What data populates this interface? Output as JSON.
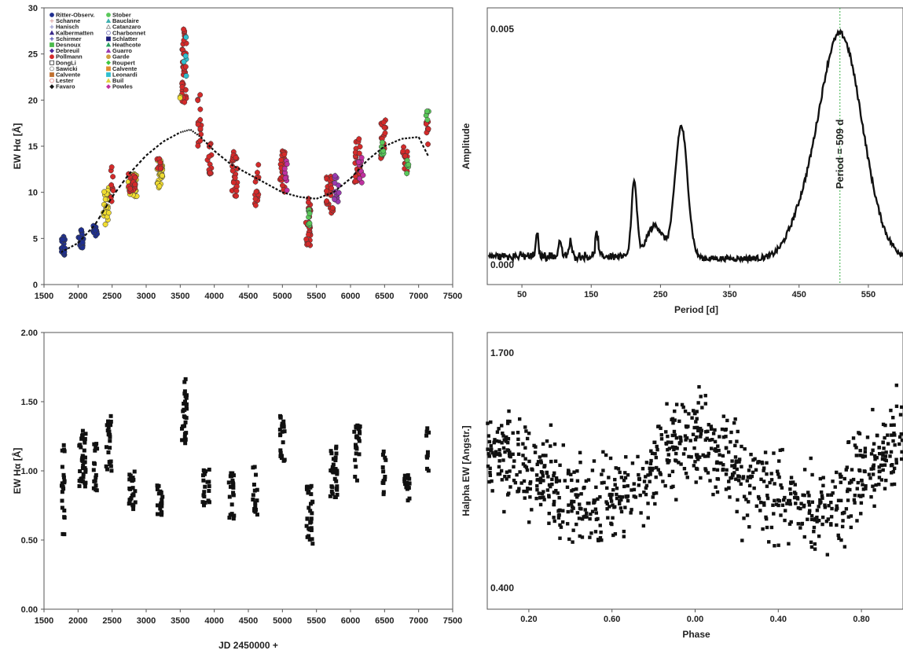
{
  "chart_data": [
    {
      "id": "ew-multi",
      "type": "scatter",
      "xlabel": "",
      "ylabel": "EW Hα [Å]",
      "xlim": [
        1500,
        7500
      ],
      "ylim": [
        0,
        30
      ],
      "xticks": [
        1500,
        2000,
        2500,
        3000,
        3500,
        4000,
        4500,
        5000,
        5500,
        6000,
        6500,
        7000,
        7500
      ],
      "yticks": [
        0,
        5,
        10,
        15,
        20,
        25,
        30
      ],
      "legend_placement": "top-left",
      "legend": [
        {
          "name": "Ritter-Observ.",
          "color": "#1f2f8f",
          "marker": "circle"
        },
        {
          "name": "Schanne",
          "color": "#d9a0a0",
          "marker": "plus"
        },
        {
          "name": "Hanisch",
          "color": "#8a8ac8",
          "marker": "plus"
        },
        {
          "name": "Kalbermatten",
          "color": "#3a2a8a",
          "marker": "triangle"
        },
        {
          "name": "Schirmer",
          "color": "#3a3aa8",
          "marker": "cross"
        },
        {
          "name": "Desnoux",
          "color": "#4cbb4c",
          "marker": "square"
        },
        {
          "name": "Debreuil",
          "color": "#4a2a9a",
          "marker": "diamond"
        },
        {
          "name": "Pollmann",
          "color": "#d42a2a",
          "marker": "circle"
        },
        {
          "name": "DongLi",
          "color": "#333333",
          "marker": "open-square"
        },
        {
          "name": "Sawicki",
          "color": "#888888",
          "marker": "open-circle"
        },
        {
          "name": "Calvente",
          "color": "#c07030",
          "marker": "square"
        },
        {
          "name": "Lester",
          "color": "#e08080",
          "marker": "open-circle"
        },
        {
          "name": "Favaro",
          "color": "#111111",
          "marker": "diamond"
        },
        {
          "name": "Stober",
          "color": "#5ac85a",
          "marker": "circle"
        },
        {
          "name": "Bauclaire",
          "color": "#40b0b0",
          "marker": "triangle"
        },
        {
          "name": "Catanzaro",
          "color": "#808080",
          "marker": "open-triangle"
        },
        {
          "name": "Charbonnet",
          "color": "#8080c0",
          "marker": "open-circle"
        },
        {
          "name": "Schlatter",
          "color": "#1a1a7a",
          "marker": "square"
        },
        {
          "name": "Heathcote",
          "color": "#2aa060",
          "marker": "triangle"
        },
        {
          "name": "Guarro",
          "color": "#9a3ab0",
          "marker": "triangle"
        },
        {
          "name": "Garde",
          "color": "#d0a040",
          "marker": "circle"
        },
        {
          "name": "Roupert",
          "color": "#40c840",
          "marker": "diamond"
        },
        {
          "name": "Calvente",
          "color": "#e08a30",
          "marker": "square"
        },
        {
          "name": "Leonardi",
          "color": "#30c0d0",
          "marker": "square"
        },
        {
          "name": "Buil",
          "color": "#e0d040",
          "marker": "triangle"
        },
        {
          "name": "Powles",
          "color": "#c030a0",
          "marker": "diamond"
        }
      ],
      "clusters": [
        {
          "c": 1780,
          "w": 60,
          "lo": 2.8,
          "hi": 5.2,
          "col": "#1f2f8f",
          "n": 22
        },
        {
          "c": 2050,
          "w": 90,
          "lo": 4.0,
          "hi": 6.0,
          "col": "#1f2f8f",
          "n": 20
        },
        {
          "c": 2250,
          "w": 60,
          "lo": 4.5,
          "hi": 6.5,
          "col": "#1f2f8f",
          "n": 10
        },
        {
          "c": 2420,
          "w": 100,
          "lo": 6.5,
          "hi": 10.5,
          "col": "#f0dc30",
          "n": 26
        },
        {
          "c": 2500,
          "w": 40,
          "lo": 9.0,
          "hi": 12.8,
          "col": "#d42a2a",
          "n": 10
        },
        {
          "c": 2800,
          "w": 130,
          "lo": 9.5,
          "hi": 12.0,
          "col": "#f0dc30",
          "n": 40
        },
        {
          "c": 2800,
          "w": 130,
          "lo": 10.0,
          "hi": 12.0,
          "col": "#d42a2a",
          "n": 20
        },
        {
          "c": 3200,
          "w": 80,
          "lo": 10.5,
          "hi": 13.5,
          "col": "#f0dc30",
          "n": 26
        },
        {
          "c": 3200,
          "w": 80,
          "lo": 12.5,
          "hi": 13.8,
          "col": "#d42a2a",
          "n": 8
        },
        {
          "c": 3560,
          "w": 70,
          "lo": 19.5,
          "hi": 28.0,
          "col": "#d42a2a",
          "n": 34
        },
        {
          "c": 3560,
          "w": 60,
          "lo": 22.0,
          "hi": 27.0,
          "col": "#30c0d0",
          "n": 5
        },
        {
          "c": 3500,
          "w": 10,
          "lo": 20.0,
          "hi": 20.5,
          "col": "#f0dc30",
          "n": 2
        },
        {
          "c": 3780,
          "w": 60,
          "lo": 15.0,
          "hi": 21.0,
          "col": "#d42a2a",
          "n": 14
        },
        {
          "c": 3930,
          "w": 60,
          "lo": 12.0,
          "hi": 16.0,
          "col": "#d42a2a",
          "n": 14
        },
        {
          "c": 4300,
          "w": 90,
          "lo": 9.5,
          "hi": 14.5,
          "col": "#d42a2a",
          "n": 26
        },
        {
          "c": 4620,
          "w": 70,
          "lo": 8.0,
          "hi": 13.0,
          "col": "#d42a2a",
          "n": 14
        },
        {
          "c": 5000,
          "w": 70,
          "lo": 10.0,
          "hi": 14.5,
          "col": "#d42a2a",
          "n": 26
        },
        {
          "c": 5050,
          "w": 40,
          "lo": 10.0,
          "hi": 14.0,
          "col": "#c030a0",
          "n": 10
        },
        {
          "c": 5380,
          "w": 70,
          "lo": 4.2,
          "hi": 9.5,
          "col": "#d42a2a",
          "n": 26
        },
        {
          "c": 5400,
          "w": 40,
          "lo": 6.0,
          "hi": 8.5,
          "col": "#5ac85a",
          "n": 8
        },
        {
          "c": 5700,
          "w": 110,
          "lo": 7.5,
          "hi": 12.0,
          "col": "#d42a2a",
          "n": 26
        },
        {
          "c": 5800,
          "w": 70,
          "lo": 9.0,
          "hi": 12.5,
          "col": "#9a3ab0",
          "n": 14
        },
        {
          "c": 6100,
          "w": 90,
          "lo": 11.0,
          "hi": 16.0,
          "col": "#d42a2a",
          "n": 24
        },
        {
          "c": 6150,
          "w": 80,
          "lo": 11.0,
          "hi": 14.0,
          "col": "#c030a0",
          "n": 10
        },
        {
          "c": 6480,
          "w": 70,
          "lo": 13.5,
          "hi": 18.0,
          "col": "#d42a2a",
          "n": 18
        },
        {
          "c": 6450,
          "w": 80,
          "lo": 14.0,
          "hi": 15.5,
          "col": "#5ac85a",
          "n": 8
        },
        {
          "c": 6800,
          "w": 70,
          "lo": 12.0,
          "hi": 15.0,
          "col": "#d42a2a",
          "n": 12
        },
        {
          "c": 6850,
          "w": 60,
          "lo": 12.0,
          "hi": 13.5,
          "col": "#5ac85a",
          "n": 5
        },
        {
          "c": 7130,
          "w": 40,
          "lo": 15.0,
          "hi": 19.0,
          "col": "#d42a2a",
          "n": 10
        },
        {
          "c": 7130,
          "w": 40,
          "lo": 17.5,
          "hi": 19.0,
          "col": "#5ac85a",
          "n": 4
        }
      ],
      "trend_x": [
        1750,
        2000,
        2250,
        2500,
        2750,
        3000,
        3250,
        3500,
        3650,
        3800,
        4000,
        4250,
        4500,
        4750,
        5000,
        5250,
        5500,
        5750,
        6000,
        6250,
        6500,
        6750,
        7000,
        7150
      ],
      "trend_y": [
        3.5,
        4.5,
        6.5,
        9.5,
        12.0,
        14.0,
        15.5,
        16.5,
        16.8,
        16.0,
        14.5,
        13.0,
        12.0,
        11.0,
        10.0,
        9.5,
        9.3,
        10.0,
        11.5,
        13.5,
        15.0,
        15.8,
        16.0,
        13.8
      ]
    },
    {
      "id": "periodogram",
      "type": "line",
      "xlabel": "Period [d]",
      "ylabel": "Amplitude",
      "xlim": [
        0,
        600
      ],
      "ylim": [
        0,
        0.0055
      ],
      "xticks": [
        50,
        150,
        250,
        350,
        450,
        550
      ],
      "corner_labels": {
        "top": "0.005",
        "bottom": "0.000"
      },
      "annotation": "Period = 509 d",
      "marker_period": 509,
      "peaks": [
        {
          "period": 72,
          "amp": 0.00045,
          "width": 2
        },
        {
          "period": 105,
          "amp": 0.00035,
          "width": 2
        },
        {
          "period": 120,
          "amp": 0.0003,
          "width": 2
        },
        {
          "period": 158,
          "amp": 0.0005,
          "width": 2
        },
        {
          "period": 212,
          "amp": 0.0016,
          "width": 4
        },
        {
          "period": 242,
          "amp": 0.0007,
          "width": 12
        },
        {
          "period": 280,
          "amp": 0.0028,
          "width": 9
        },
        {
          "period": 448,
          "amp": 0.00035,
          "width": 18
        },
        {
          "period": 509,
          "amp": 0.00477,
          "width": 32
        }
      ],
      "baseline": 0.00012
    },
    {
      "id": "ew-single",
      "type": "scatter",
      "xlabel": "JD 2450000 +",
      "ylabel": "EW Hα [Å]",
      "xlim": [
        1500,
        7500
      ],
      "ylim": [
        0,
        2.0
      ],
      "xticks": [
        1500,
        2000,
        2500,
        3000,
        3500,
        4000,
        4500,
        5000,
        5500,
        6000,
        6500,
        7000,
        7500
      ],
      "yticks": [
        0.0,
        0.5,
        1.0,
        1.5,
        2.0
      ],
      "ytick_labels": [
        "0.00",
        "0.50",
        "1.00",
        "1.50",
        "2.00"
      ],
      "clusters": [
        {
          "c": 1780,
          "w": 50,
          "lo": 0.53,
          "hi": 1.2,
          "n": 22
        },
        {
          "c": 2070,
          "w": 110,
          "lo": 0.88,
          "hi": 1.3,
          "n": 40
        },
        {
          "c": 2250,
          "w": 60,
          "lo": 0.85,
          "hi": 1.2,
          "n": 16
        },
        {
          "c": 2450,
          "w": 90,
          "lo": 1.0,
          "hi": 1.4,
          "n": 22
        },
        {
          "c": 2800,
          "w": 110,
          "lo": 0.72,
          "hi": 1.0,
          "n": 26
        },
        {
          "c": 3200,
          "w": 80,
          "lo": 0.66,
          "hi": 0.9,
          "n": 20
        },
        {
          "c": 3560,
          "w": 70,
          "lo": 1.2,
          "hi": 1.67,
          "n": 30
        },
        {
          "c": 3880,
          "w": 100,
          "lo": 0.75,
          "hi": 1.05,
          "n": 20
        },
        {
          "c": 4250,
          "w": 80,
          "lo": 0.65,
          "hi": 1.0,
          "n": 20
        },
        {
          "c": 4600,
          "w": 70,
          "lo": 0.62,
          "hi": 1.07,
          "n": 16
        },
        {
          "c": 5000,
          "w": 70,
          "lo": 1.05,
          "hi": 1.4,
          "n": 24
        },
        {
          "c": 5400,
          "w": 90,
          "lo": 0.47,
          "hi": 0.9,
          "n": 30
        },
        {
          "c": 5750,
          "w": 110,
          "lo": 0.78,
          "hi": 1.2,
          "n": 34
        },
        {
          "c": 6100,
          "w": 90,
          "lo": 0.92,
          "hi": 1.33,
          "n": 26
        },
        {
          "c": 6500,
          "w": 60,
          "lo": 0.8,
          "hi": 1.15,
          "n": 14
        },
        {
          "c": 6830,
          "w": 90,
          "lo": 0.78,
          "hi": 0.98,
          "n": 18
        },
        {
          "c": 7130,
          "w": 40,
          "lo": 0.98,
          "hi": 1.32,
          "n": 10
        }
      ]
    },
    {
      "id": "phase",
      "type": "scatter",
      "xlabel": "Phase",
      "ylabel": "Halpha EW [Angstr.]",
      "xlim": [
        0,
        1
      ],
      "ylim": [
        0.38,
        1.72
      ],
      "xtick_positions": [
        0.1,
        0.3,
        0.5,
        0.7,
        0.9
      ],
      "xtick_labels": [
        "0.20",
        "0.60",
        "0.00",
        "0.40",
        "0.80"
      ],
      "corner_labels": {
        "top": "1.700",
        "bottom": "0.400"
      },
      "n_points": 900,
      "scatter_sigma": 0.15,
      "cycle_means": [
        1.15,
        1.12,
        1.07,
        1.0,
        0.95,
        0.9,
        0.88,
        0.92,
        1.0,
        1.08,
        1.18,
        1.2,
        1.15,
        1.07,
        1.0,
        0.95,
        0.9,
        0.87,
        0.88,
        0.95,
        1.05,
        1.15,
        1.2
      ]
    }
  ]
}
